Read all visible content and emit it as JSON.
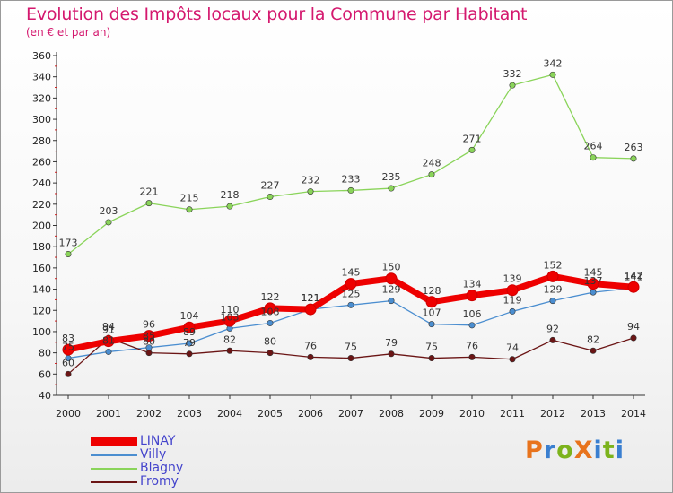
{
  "header": {
    "title": "Evolution des Impôts locaux pour la Commune par Habitant",
    "subtitle": "(en € et par an)"
  },
  "brand": {
    "text": "ProXiti",
    "colors": [
      "#e8731c",
      "#3a7fd0",
      "#7cb31c",
      "#e8731c",
      "#3a7fd0",
      "#7cb31c",
      "#3a7fd0"
    ]
  },
  "chart_data": {
    "type": "line",
    "title": "Evolution des Impôts locaux pour la Commune par Habitant",
    "subtitle": "(en € et par an)",
    "xlabel": "",
    "ylabel": "",
    "x": [
      "2000",
      "2001",
      "2002",
      "2003",
      "2004",
      "2005",
      "2006",
      "2007",
      "2008",
      "2009",
      "2010",
      "2011",
      "2012",
      "2013",
      "2014"
    ],
    "ylim": [
      40,
      360
    ],
    "yticks": [
      40,
      60,
      80,
      100,
      120,
      140,
      160,
      180,
      200,
      220,
      240,
      260,
      280,
      300,
      320,
      340,
      360
    ],
    "grid": false,
    "legend_position": "bottom-left",
    "series": [
      {
        "name": "LINAY",
        "color": "#ee0000",
        "values": [
          83,
          91,
          96,
          104,
          110,
          122,
          121,
          145,
          150,
          128,
          134,
          139,
          152,
          145,
          142
        ]
      },
      {
        "name": "Villy",
        "color": "#4b8ed0",
        "values": [
          75,
          81,
          85,
          89,
          103,
          108,
          121,
          125,
          129,
          107,
          106,
          119,
          129,
          137,
          141
        ]
      },
      {
        "name": "Blagny",
        "color": "#8ad45a",
        "values": [
          173,
          203,
          221,
          215,
          218,
          227,
          232,
          233,
          235,
          248,
          271,
          332,
          342,
          264,
          263
        ]
      },
      {
        "name": "Fromy",
        "color": "#6b1515",
        "values": [
          60,
          94,
          80,
          79,
          82,
          80,
          76,
          75,
          79,
          75,
          76,
          74,
          92,
          82,
          94
        ]
      }
    ]
  }
}
